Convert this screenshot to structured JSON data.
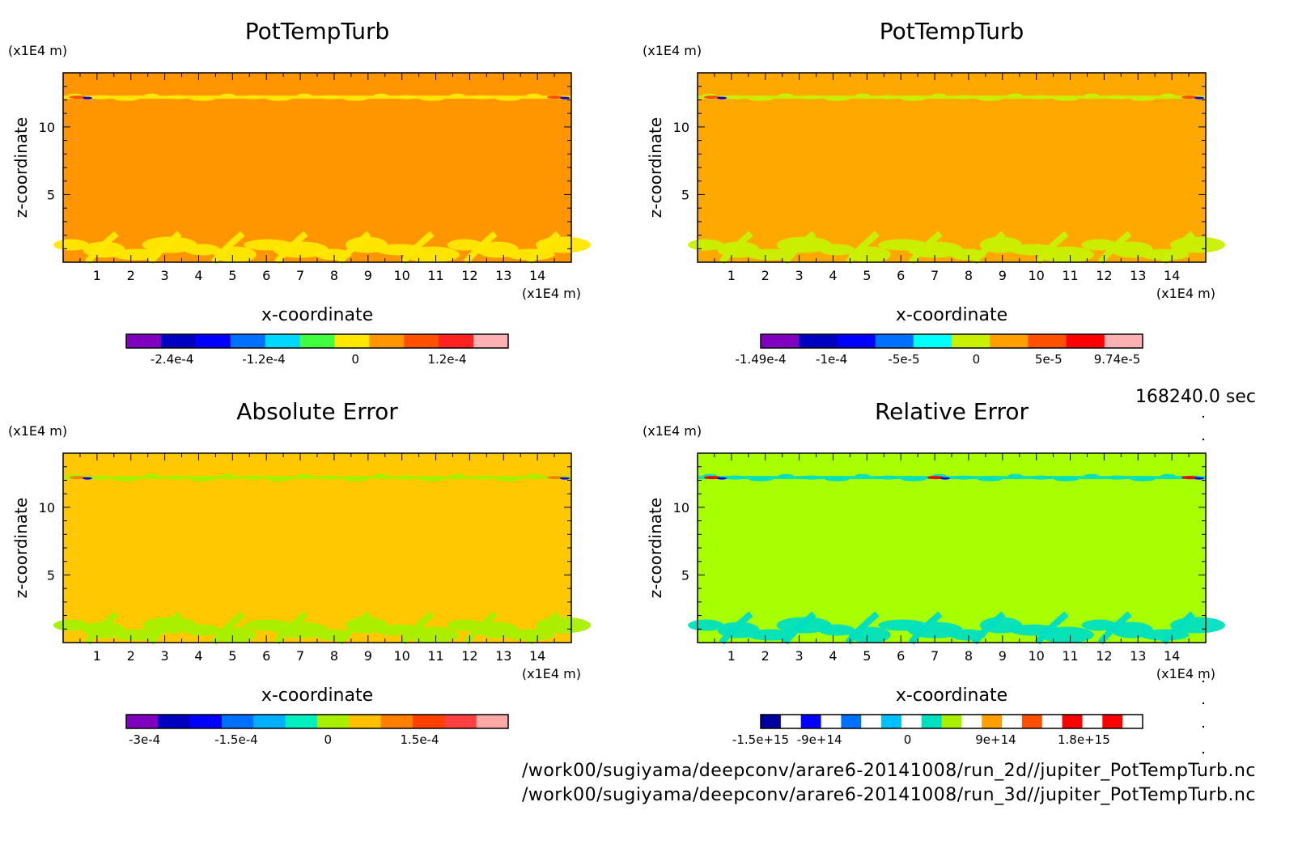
{
  "time_label": "168240.0 sec",
  "files": [
    "/work00/sugiyama/deepconv/arare6-20141008/run_2d//jupiter_PotTempTurb.nc",
    "/work00/sugiyama/deepconv/arare6-20141008/run_3d//jupiter_PotTempTurb.nc"
  ],
  "chart_data": [
    {
      "type": "heatmap",
      "title": "PotTempTurb",
      "xlabel": "x-coordinate",
      "ylabel": "z-coordinate",
      "x_unit": "(x1E4 m)",
      "y_unit": "(x1E4 m)",
      "xlim": [
        0,
        15
      ],
      "ylim": [
        0,
        14
      ],
      "xticks": [
        "1",
        "2",
        "3",
        "4",
        "5",
        "6",
        "7",
        "8",
        "9",
        "10",
        "11",
        "12",
        "13",
        "14"
      ],
      "yticks": [
        "5",
        "10"
      ],
      "background_color": "#ff9600",
      "colorbar": {
        "colors": [
          "#8000c0",
          "#0000c0",
          "#0000ff",
          "#0070ff",
          "#00d8ff",
          "#40ff40",
          "#ffe800",
          "#ff9600",
          "#ff5000",
          "#ff2020",
          "#ffb0b0"
        ],
        "tick_labels": [
          "-2.4e-4",
          "-1.2e-4",
          "0",
          "1.2e-4"
        ],
        "tick_values": [
          -0.00024,
          -0.00012,
          0,
          0.00012
        ],
        "min": -0.0003,
        "max": 0.0002
      }
    },
    {
      "type": "heatmap",
      "title": "PotTempTurb",
      "xlabel": "x-coordinate",
      "ylabel": "z-coordinate",
      "x_unit": "(x1E4 m)",
      "y_unit": "(x1E4 m)",
      "xlim": [
        0,
        15
      ],
      "ylim": [
        0,
        14
      ],
      "xticks": [
        "1",
        "2",
        "3",
        "4",
        "5",
        "6",
        "7",
        "8",
        "9",
        "10",
        "11",
        "12",
        "13",
        "14"
      ],
      "yticks": [
        "5",
        "10"
      ],
      "background_color": "#ffa800",
      "colorbar": {
        "colors": [
          "#8000c0",
          "#0000c0",
          "#0000ff",
          "#0070ff",
          "#00ffff",
          "#c8f000",
          "#ffa000",
          "#ff5000",
          "#ff0000",
          "#ffb0b0"
        ],
        "tick_labels": [
          "-1.49e-4",
          "-1e-4",
          "-5e-5",
          "0",
          "5e-5",
          "9.74e-5"
        ],
        "tick_values": [
          -0.000149,
          -0.0001,
          -5e-05,
          0,
          5e-05,
          9.74e-05
        ],
        "min": -0.000149,
        "max": 0.000115
      }
    },
    {
      "type": "heatmap",
      "title": "Absolute Error",
      "xlabel": "x-coordinate",
      "ylabel": "z-coordinate",
      "x_unit": "(x1E4 m)",
      "y_unit": "(x1E4 m)",
      "xlim": [
        0,
        15
      ],
      "ylim": [
        0,
        14
      ],
      "xticks": [
        "1",
        "2",
        "3",
        "4",
        "5",
        "6",
        "7",
        "8",
        "9",
        "10",
        "11",
        "12",
        "13",
        "14"
      ],
      "yticks": [
        "5",
        "10"
      ],
      "background_color": "#ffc800",
      "colorbar": {
        "colors": [
          "#8000c0",
          "#0000c0",
          "#0000ff",
          "#0070ff",
          "#00b0ff",
          "#00f0c0",
          "#a8f000",
          "#ffc000",
          "#ff8000",
          "#ff4000",
          "#ff4040",
          "#ffa8a8"
        ],
        "tick_labels": [
          "-3e-4",
          "-1.5e-4",
          "0",
          "1.5e-4"
        ],
        "tick_values": [
          -0.0003,
          -0.00015,
          0,
          0.00015
        ],
        "min": -0.00033,
        "max": 0.000295
      }
    },
    {
      "type": "heatmap",
      "title": "Relative Error",
      "xlabel": "x-coordinate",
      "ylabel": "z-coordinate",
      "x_unit": "(x1E4 m)",
      "y_unit": "(x1E4 m)",
      "xlim": [
        0,
        15
      ],
      "ylim": [
        0,
        14
      ],
      "xticks": [
        "1",
        "2",
        "3",
        "4",
        "5",
        "6",
        "7",
        "8",
        "9",
        "10",
        "11",
        "12",
        "13",
        "14"
      ],
      "yticks": [
        "5",
        "10"
      ],
      "background_color": "#a8ff00",
      "colorbar": {
        "colors": [
          "#0000a0",
          "#ffffff",
          "#0000ff",
          "#ffffff",
          "#0070ff",
          "#ffffff",
          "#00c0ff",
          "#ffffff",
          "#00e0c0",
          "#a8f000",
          "#ffffff",
          "#ffa000",
          "#ffffff",
          "#ff5000",
          "#ffffff",
          "#ff0000",
          "#ffffff",
          "#ff0000",
          "#ffffff"
        ],
        "tick_labels": [
          "-1.5e+15",
          "-9e+14",
          "0",
          "9e+14",
          "1.8e+15"
        ],
        "tick_values": [
          -1500000000000000.0,
          -900000000000000.0,
          0,
          900000000000000.0,
          1800000000000000.0
        ],
        "min": -1500000000000000.0,
        "max": 2400000000000000.0
      }
    }
  ]
}
